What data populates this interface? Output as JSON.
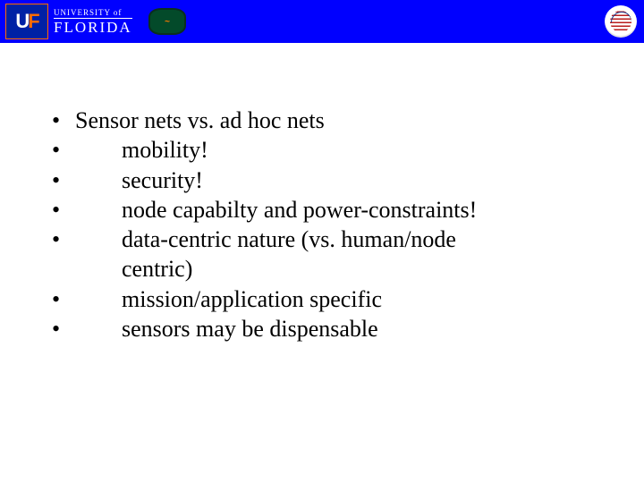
{
  "header": {
    "uf_initials_u": "U",
    "uf_initials_f": "F",
    "uf_top": "UNIVERSITY of",
    "uf_bottom": "FLORIDA",
    "gator_mark": "~"
  },
  "slide": {
    "main": "Sensor nets vs. ad hoc nets",
    "items": [
      "mobility!",
      "security!",
      "node capabilty and power-constraints!",
      "data-centric nature (vs. human/node",
      "centric)",
      "mission/application specific",
      "sensors may be dispensable"
    ]
  }
}
